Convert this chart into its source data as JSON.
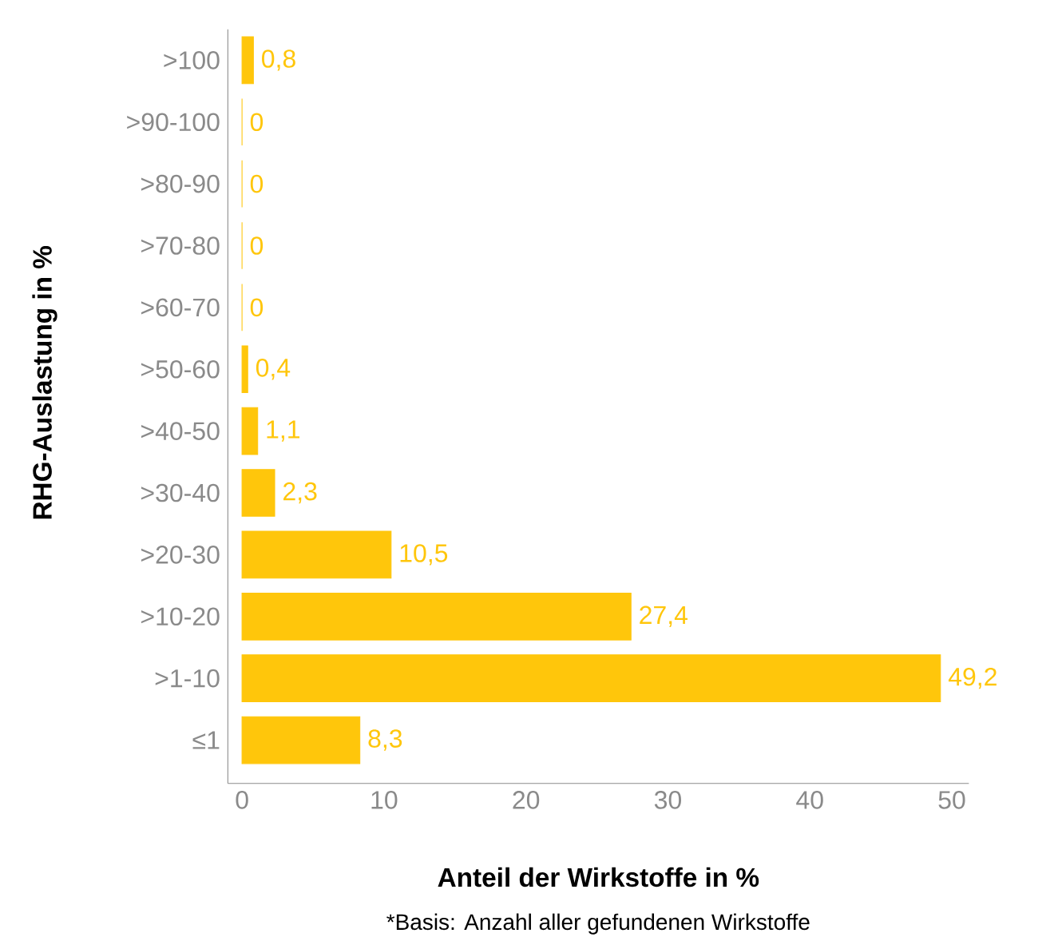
{
  "chart_data": {
    "type": "bar",
    "orientation": "horizontal",
    "xlabel": "Anteil der Wirkstoffe in %",
    "ylabel": "RHG-Auslastung in %",
    "categories": [
      ">100",
      ">90-100",
      ">80-90",
      ">70-80",
      ">60-70",
      ">50-60",
      ">40-50",
      ">30-40",
      ">20-30",
      ">10-20",
      ">1-10",
      "≤1"
    ],
    "values": [
      0.8,
      0,
      0,
      0,
      0,
      0.4,
      1.1,
      2.3,
      10.5,
      27.4,
      49.2,
      8.3
    ],
    "value_labels": [
      "0,8",
      "0",
      "0",
      "0",
      "0",
      "0,4",
      "1,1",
      "2,3",
      "10,5",
      "27,4",
      "49,2",
      "8,3"
    ],
    "color": "#ffc60b",
    "xlim": [
      -1,
      51.2
    ],
    "xticks": [
      0,
      10,
      20,
      30,
      40,
      50
    ],
    "annotations": [
      "*Basis: Anzahl aller gefundenen Wirkstoffe"
    ]
  }
}
